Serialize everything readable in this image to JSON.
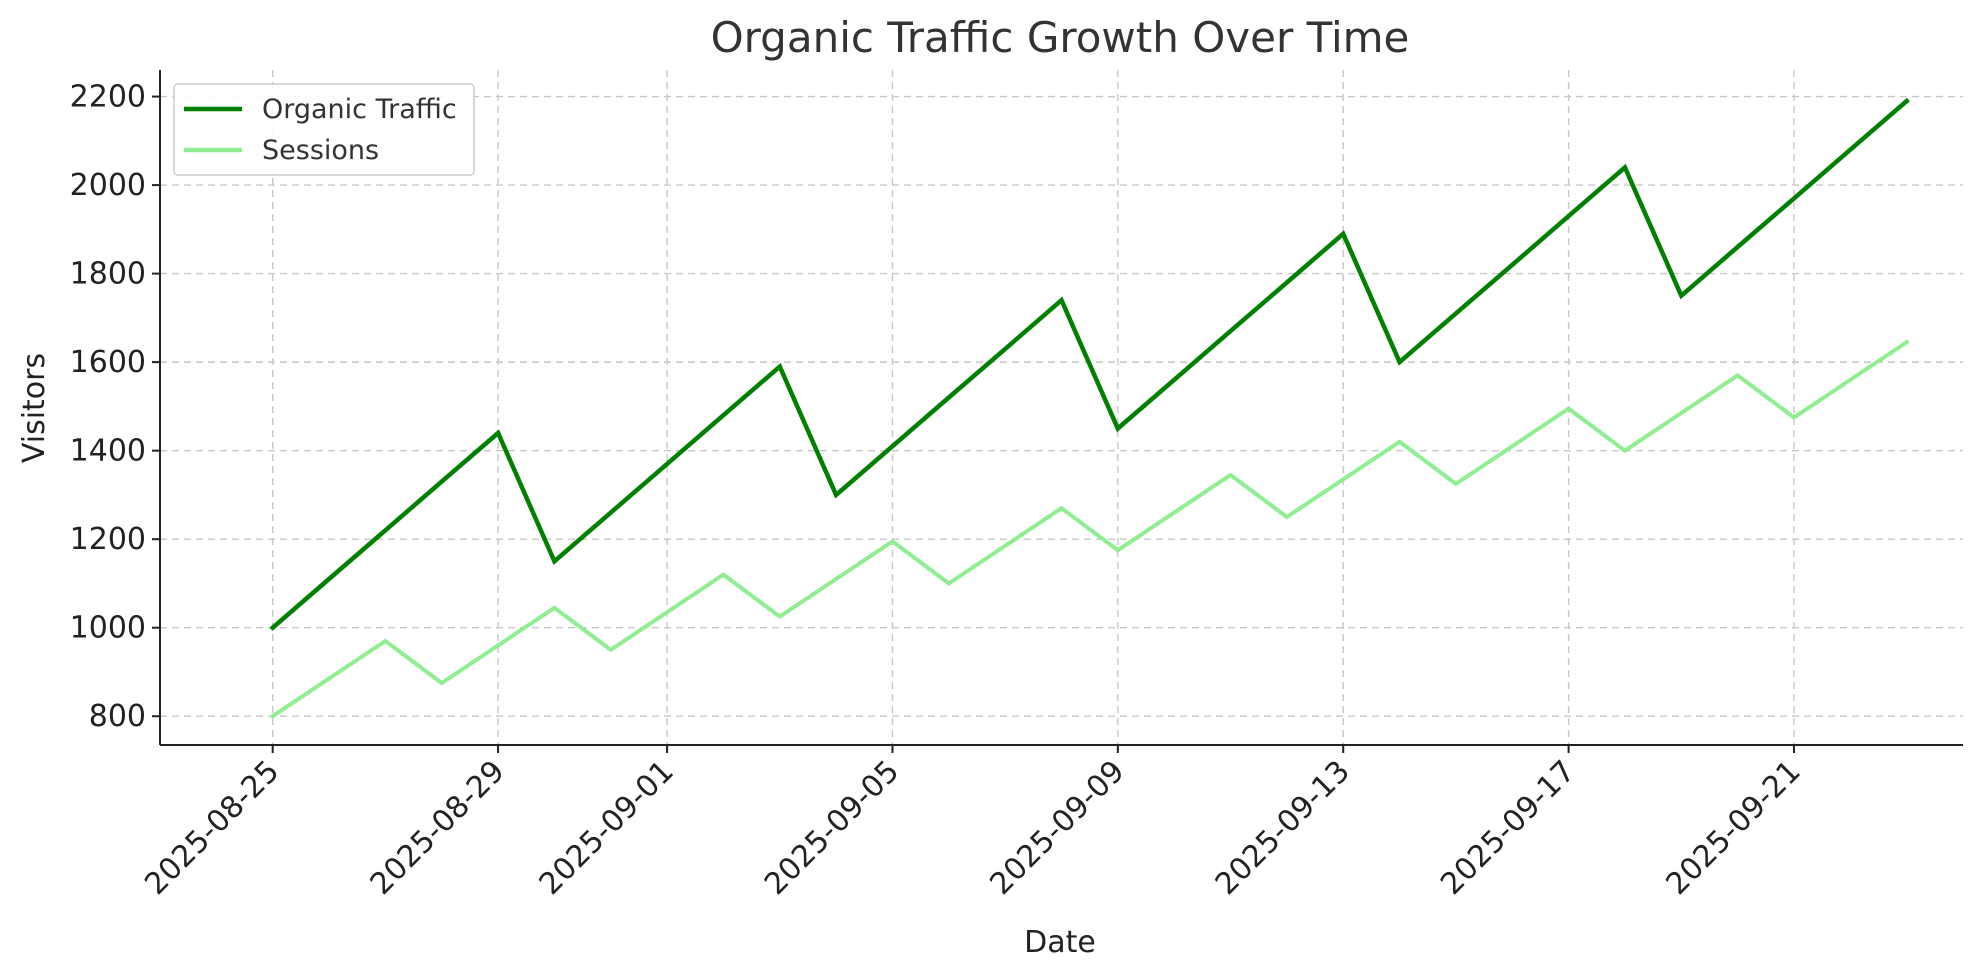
{
  "chart_data": {
    "type": "line",
    "title": "Organic Traffic Growth Over Time",
    "xlabel": "Date",
    "ylabel": "Visitors",
    "x": [
      "2025-08-25",
      "2025-08-26",
      "2025-08-27",
      "2025-08-28",
      "2025-08-29",
      "2025-08-30",
      "2025-08-31",
      "2025-09-01",
      "2025-09-02",
      "2025-09-03",
      "2025-09-04",
      "2025-09-05",
      "2025-09-06",
      "2025-09-07",
      "2025-09-08",
      "2025-09-09",
      "2025-09-10",
      "2025-09-11",
      "2025-09-12",
      "2025-09-13",
      "2025-09-14",
      "2025-09-15",
      "2025-09-16",
      "2025-09-17",
      "2025-09-18",
      "2025-09-19",
      "2025-09-20",
      "2025-09-21",
      "2025-09-22",
      "2025-09-23"
    ],
    "x_tick_labels": [
      "2025-08-25",
      "2025-08-29",
      "2025-09-01",
      "2025-09-05",
      "2025-09-09",
      "2025-09-13",
      "2025-09-17",
      "2025-09-21"
    ],
    "y_ticks": [
      800,
      1000,
      1200,
      1400,
      1600,
      1800,
      2000,
      2200
    ],
    "ylim": [
      735,
      2260
    ],
    "xlim": [
      "2025-08-23",
      "2025-09-24"
    ],
    "grid": true,
    "legend_position": "top-left",
    "series": [
      {
        "name": "Organic Traffic",
        "color": "#008000",
        "values": [
          1000,
          1110,
          1220,
          1330,
          1440,
          1150,
          1260,
          1370,
          1480,
          1590,
          1300,
          1410,
          1520,
          1630,
          1740,
          1450,
          1560,
          1670,
          1780,
          1890,
          1600,
          1710,
          1820,
          1930,
          2040,
          1750,
          1860,
          1970,
          2080,
          2190
        ]
      },
      {
        "name": "Sessions",
        "color": "#90ee90",
        "values": [
          800,
          885,
          970,
          875,
          960,
          1045,
          950,
          1035,
          1120,
          1025,
          1110,
          1195,
          1100,
          1185,
          1270,
          1175,
          1260,
          1345,
          1250,
          1335,
          1420,
          1325,
          1410,
          1495,
          1400,
          1485,
          1570,
          1475,
          1560,
          1645
        ]
      }
    ]
  }
}
